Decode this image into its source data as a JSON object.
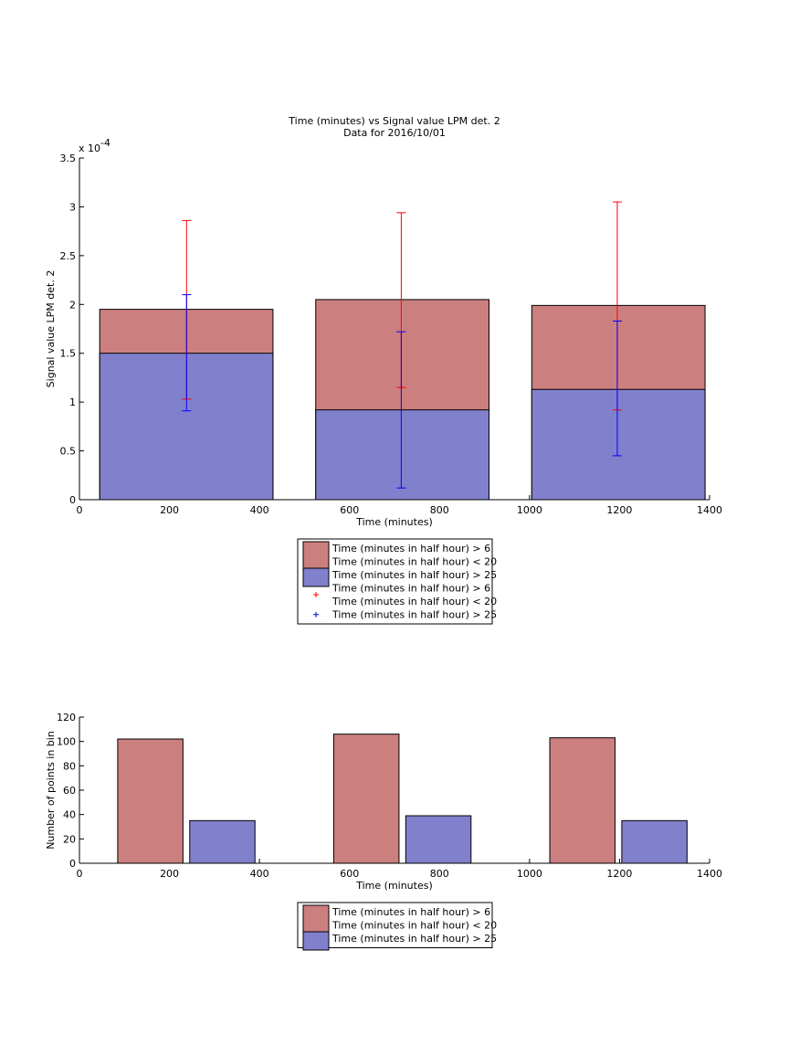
{
  "chart_data": [
    {
      "type": "bar",
      "title": "Time (minutes) vs Signal value LPM det. 2",
      "subtitle": "Data for 2016/10/01",
      "xlabel": "Time (minutes)",
      "ylabel": "Signal value LPM det. 2",
      "y_exponent_label": "x 10",
      "y_exponent": "-4",
      "xlim": [
        0,
        1400
      ],
      "ylim": [
        0,
        3.5
      ],
      "xticks": [
        "0",
        "200",
        "400",
        "600",
        "800",
        "1000",
        "1200",
        "1400"
      ],
      "yticks": [
        "0",
        "0.5",
        "1",
        "1.5",
        "2",
        "2.5",
        "3",
        "3.5"
      ],
      "bars": [
        {
          "x_start": 45,
          "x_end": 430,
          "red_top": 1.95,
          "blue_top": 1.5
        },
        {
          "x_start": 525,
          "x_end": 910,
          "red_top": 2.05,
          "blue_top": 0.92
        },
        {
          "x_start": 1005,
          "x_end": 1390,
          "red_top": 1.99,
          "blue_top": 1.13
        }
      ],
      "errorbars": [
        {
          "series": "red",
          "x": 238,
          "center": 1.94,
          "low": 1.03,
          "high": 2.86
        },
        {
          "series": "blue",
          "x": 238,
          "center": 1.5,
          "low": 0.91,
          "high": 2.1
        },
        {
          "series": "red",
          "x": 715,
          "center": 2.04,
          "low": 1.15,
          "high": 2.94
        },
        {
          "series": "blue",
          "x": 715,
          "center": 0.92,
          "low": 0.12,
          "high": 1.72
        },
        {
          "series": "red",
          "x": 1195,
          "center": 1.98,
          "low": 0.92,
          "high": 3.05
        },
        {
          "series": "blue",
          "x": 1195,
          "center": 1.14,
          "low": 0.45,
          "high": 1.83
        }
      ],
      "legend": {
        "placement": "below",
        "entries": [
          {
            "kind": "patch",
            "color": "red",
            "lines": [
              "Time (minutes in half hour) > 6",
              "Time (minutes in half hour) < 20"
            ]
          },
          {
            "kind": "patch",
            "color": "blue",
            "lines": [
              "Time (minutes in half hour) > 25"
            ]
          },
          {
            "kind": "marker",
            "color": "red",
            "lines": [
              "Time (minutes in half hour) > 6",
              "Time (minutes in half hour) < 20"
            ]
          },
          {
            "kind": "marker",
            "color": "blue",
            "lines": [
              "Time (minutes in half hour) > 25"
            ]
          }
        ]
      }
    },
    {
      "type": "bar",
      "xlabel": "Time (minutes)",
      "ylabel": "Number of points in bin",
      "xlim": [
        0,
        1400
      ],
      "ylim": [
        0,
        120
      ],
      "xticks": [
        "0",
        "200",
        "400",
        "600",
        "800",
        "1000",
        "1200",
        "1400"
      ],
      "yticks": [
        "0",
        "20",
        "40",
        "60",
        "80",
        "100",
        "120"
      ],
      "bars": [
        {
          "series": "red",
          "x_start": 85,
          "x_end": 230,
          "value": 102
        },
        {
          "series": "blue",
          "x_start": 245,
          "x_end": 390,
          "value": 35
        },
        {
          "series": "red",
          "x_start": 565,
          "x_end": 710,
          "value": 106
        },
        {
          "series": "blue",
          "x_start": 725,
          "x_end": 870,
          "value": 39
        },
        {
          "series": "red",
          "x_start": 1045,
          "x_end": 1190,
          "value": 103
        },
        {
          "series": "blue",
          "x_start": 1205,
          "x_end": 1350,
          "value": 35
        }
      ],
      "legend": {
        "placement": "below",
        "entries": [
          {
            "kind": "patch",
            "color": "red",
            "lines": [
              "Time (minutes in half hour) > 6",
              "Time (minutes in half hour) < 20"
            ]
          },
          {
            "kind": "patch",
            "color": "blue",
            "lines": [
              "Time (minutes in half hour) > 25"
            ]
          }
        ]
      }
    }
  ],
  "colors": {
    "red_fill": "#cc7f7f",
    "blue_fill": "#8080cc",
    "red_line": "#ff0000",
    "blue_line": "#0000ff",
    "axis": "#000000"
  }
}
